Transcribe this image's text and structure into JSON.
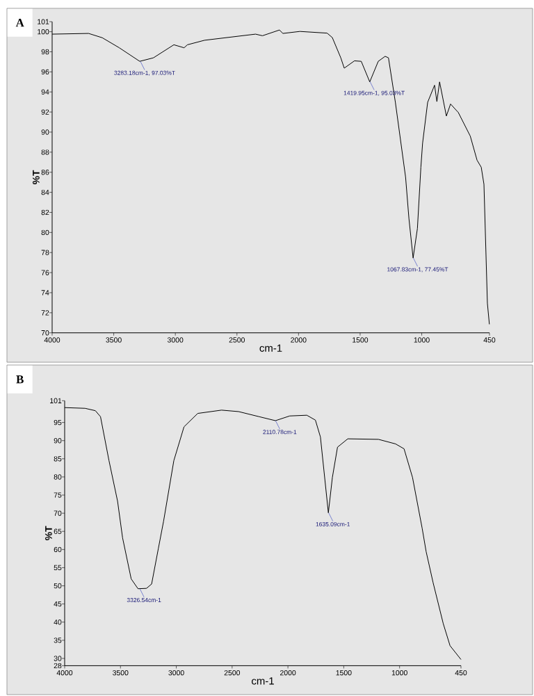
{
  "chart_data": [
    {
      "type": "line",
      "title": "A",
      "xlabel": "cm-1",
      "ylabel": "%T",
      "xlim": [
        4000,
        450
      ],
      "ylim": [
        70,
        101
      ],
      "xticks": [
        4000,
        3500,
        3000,
        2500,
        2000,
        1500,
        1000,
        450
      ],
      "yticks": [
        70,
        72,
        74,
        76,
        78,
        80,
        82,
        84,
        86,
        88,
        90,
        92,
        94,
        96,
        98,
        100,
        101
      ],
      "series": [
        {
          "color": "#000000",
          "x": [
            4000,
            3704,
            3593,
            3455,
            3289,
            3178,
            3012,
            2929,
            2902,
            2763,
            2349,
            2293,
            2155,
            2127,
            1989,
            1768,
            1726,
            1657,
            1629,
            1546,
            1491,
            1422,
            1353,
            1297,
            1270,
            1214,
            1131,
            1104,
            1070,
            1035,
            1007,
            993,
            952,
            896,
            877,
            855,
            800,
            766,
            703,
            606,
            551,
            517,
            495,
            467,
            451
          ],
          "values": [
            99.76,
            99.83,
            99.4,
            98.4,
            97.05,
            97.4,
            98.7,
            98.4,
            98.7,
            99.15,
            99.76,
            99.6,
            100.17,
            99.83,
            100.03,
            99.86,
            99.42,
            97.4,
            96.37,
            97.1,
            97.05,
            95.0,
            97.05,
            97.55,
            97.4,
            92.97,
            85.5,
            81.4,
            77.45,
            80.4,
            86.5,
            88.9,
            92.97,
            94.67,
            93.04,
            95.0,
            91.6,
            92.8,
            91.95,
            89.6,
            87.2,
            86.5,
            84.8,
            72.95,
            70.85
          ]
        }
      ],
      "annotations": [
        {
          "text": "3283.18cm-1, 97.03%T",
          "x": 3283.18,
          "y": 97.03
        },
        {
          "text": "1419.95cm-1, 95.03%T",
          "x": 1419.95,
          "y": 95.03
        },
        {
          "text": "1067.83cm-1, 77.45%T",
          "x": 1067.83,
          "y": 77.45
        }
      ]
    },
    {
      "type": "line",
      "title": "B",
      "xlabel": "cm-1",
      "ylabel": "%T",
      "xlim": [
        4000,
        450
      ],
      "ylim": [
        28,
        101
      ],
      "xticks": [
        4000,
        3500,
        3000,
        2500,
        2000,
        1500,
        1000,
        450
      ],
      "yticks": [
        28,
        30,
        35,
        40,
        45,
        50,
        55,
        60,
        65,
        70,
        75,
        80,
        85,
        90,
        95,
        101
      ],
      "series": [
        {
          "color": "#000000",
          "x": [
            4000,
            3817,
            3725,
            3679,
            3603,
            3526,
            3481,
            3404,
            3343,
            3267,
            3221,
            3160,
            3114,
            3022,
            2931,
            2808,
            2595,
            2442,
            2258,
            2112,
            1984,
            1831,
            1754,
            1709,
            1638,
            1602,
            1556,
            1464,
            1189,
            1036,
            960,
            884,
            798,
            762,
            700,
            609,
            548,
            450
          ],
          "values": [
            99.1,
            98.9,
            98.25,
            96.6,
            84.5,
            73.3,
            63.2,
            51.9,
            49.2,
            49.3,
            50.5,
            60.4,
            67.8,
            84.5,
            93.8,
            97.5,
            98.4,
            98.0,
            96.6,
            95.5,
            96.8,
            97.0,
            95.65,
            91.0,
            70.1,
            79.85,
            88.2,
            90.5,
            90.35,
            89.1,
            87.75,
            79.85,
            65.9,
            59.4,
            50.9,
            39.6,
            33.5,
            29.7
          ]
        }
      ],
      "annotations": [
        {
          "text": "3326.54cm-1",
          "x": 3326.54,
          "y": 49.2
        },
        {
          "text": "2110.78cm-1",
          "x": 2110.78,
          "y": 95.5
        },
        {
          "text": "1635.09cm-1",
          "x": 1635.09,
          "y": 70.1
        }
      ]
    }
  ]
}
